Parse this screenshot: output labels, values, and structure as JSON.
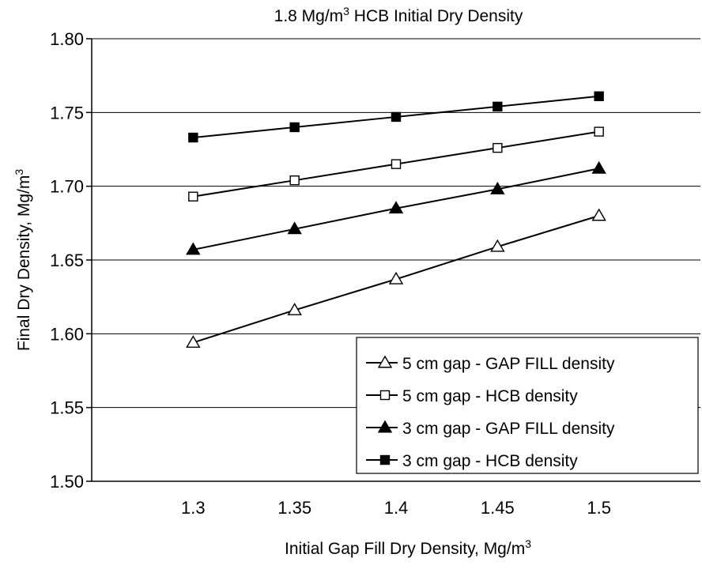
{
  "chart_data": {
    "type": "line",
    "title": {
      "prefix": "1.8 Mg/m",
      "sup": "3",
      "suffix": " HCB Initial Dry Density"
    },
    "xlabel": {
      "main": "Initial Gap Fill Dry Density, Mg/m",
      "sup": "3"
    },
    "ylabel": {
      "main": "Final Dry Density, Mg/m",
      "sup": "3"
    },
    "x": [
      1.3,
      1.35,
      1.4,
      1.45,
      1.5
    ],
    "x_tick_labels": [
      "1.3",
      "1.35",
      "1.4",
      "1.45",
      "1.5"
    ],
    "xlim": [
      1.25,
      1.55
    ],
    "ylim": [
      1.5,
      1.8
    ],
    "y_ticks": [
      1.5,
      1.55,
      1.6,
      1.65,
      1.7,
      1.75,
      1.8
    ],
    "y_tick_labels": [
      "1.50",
      "1.55",
      "1.60",
      "1.65",
      "1.70",
      "1.75",
      "1.80"
    ],
    "grid": "horizontal",
    "legend_position": "bottom-right",
    "series": [
      {
        "name": "5 cm gap - GAP FILL density",
        "marker": "triangle-open",
        "values": [
          1.594,
          1.616,
          1.637,
          1.659,
          1.68
        ]
      },
      {
        "name": "5 cm gap - HCB density",
        "marker": "square-open",
        "values": [
          1.693,
          1.704,
          1.715,
          1.726,
          1.737
        ]
      },
      {
        "name": "3 cm gap - GAP FILL density",
        "marker": "triangle-filled",
        "values": [
          1.657,
          1.671,
          1.685,
          1.698,
          1.712
        ]
      },
      {
        "name": "3 cm gap - HCB density",
        "marker": "square-filled",
        "values": [
          1.733,
          1.74,
          1.747,
          1.754,
          1.761
        ]
      }
    ],
    "legend_order": [
      0,
      1,
      2,
      3
    ],
    "colors": {
      "line": "#000000",
      "grid": "#000000",
      "background": "#ffffff"
    }
  }
}
